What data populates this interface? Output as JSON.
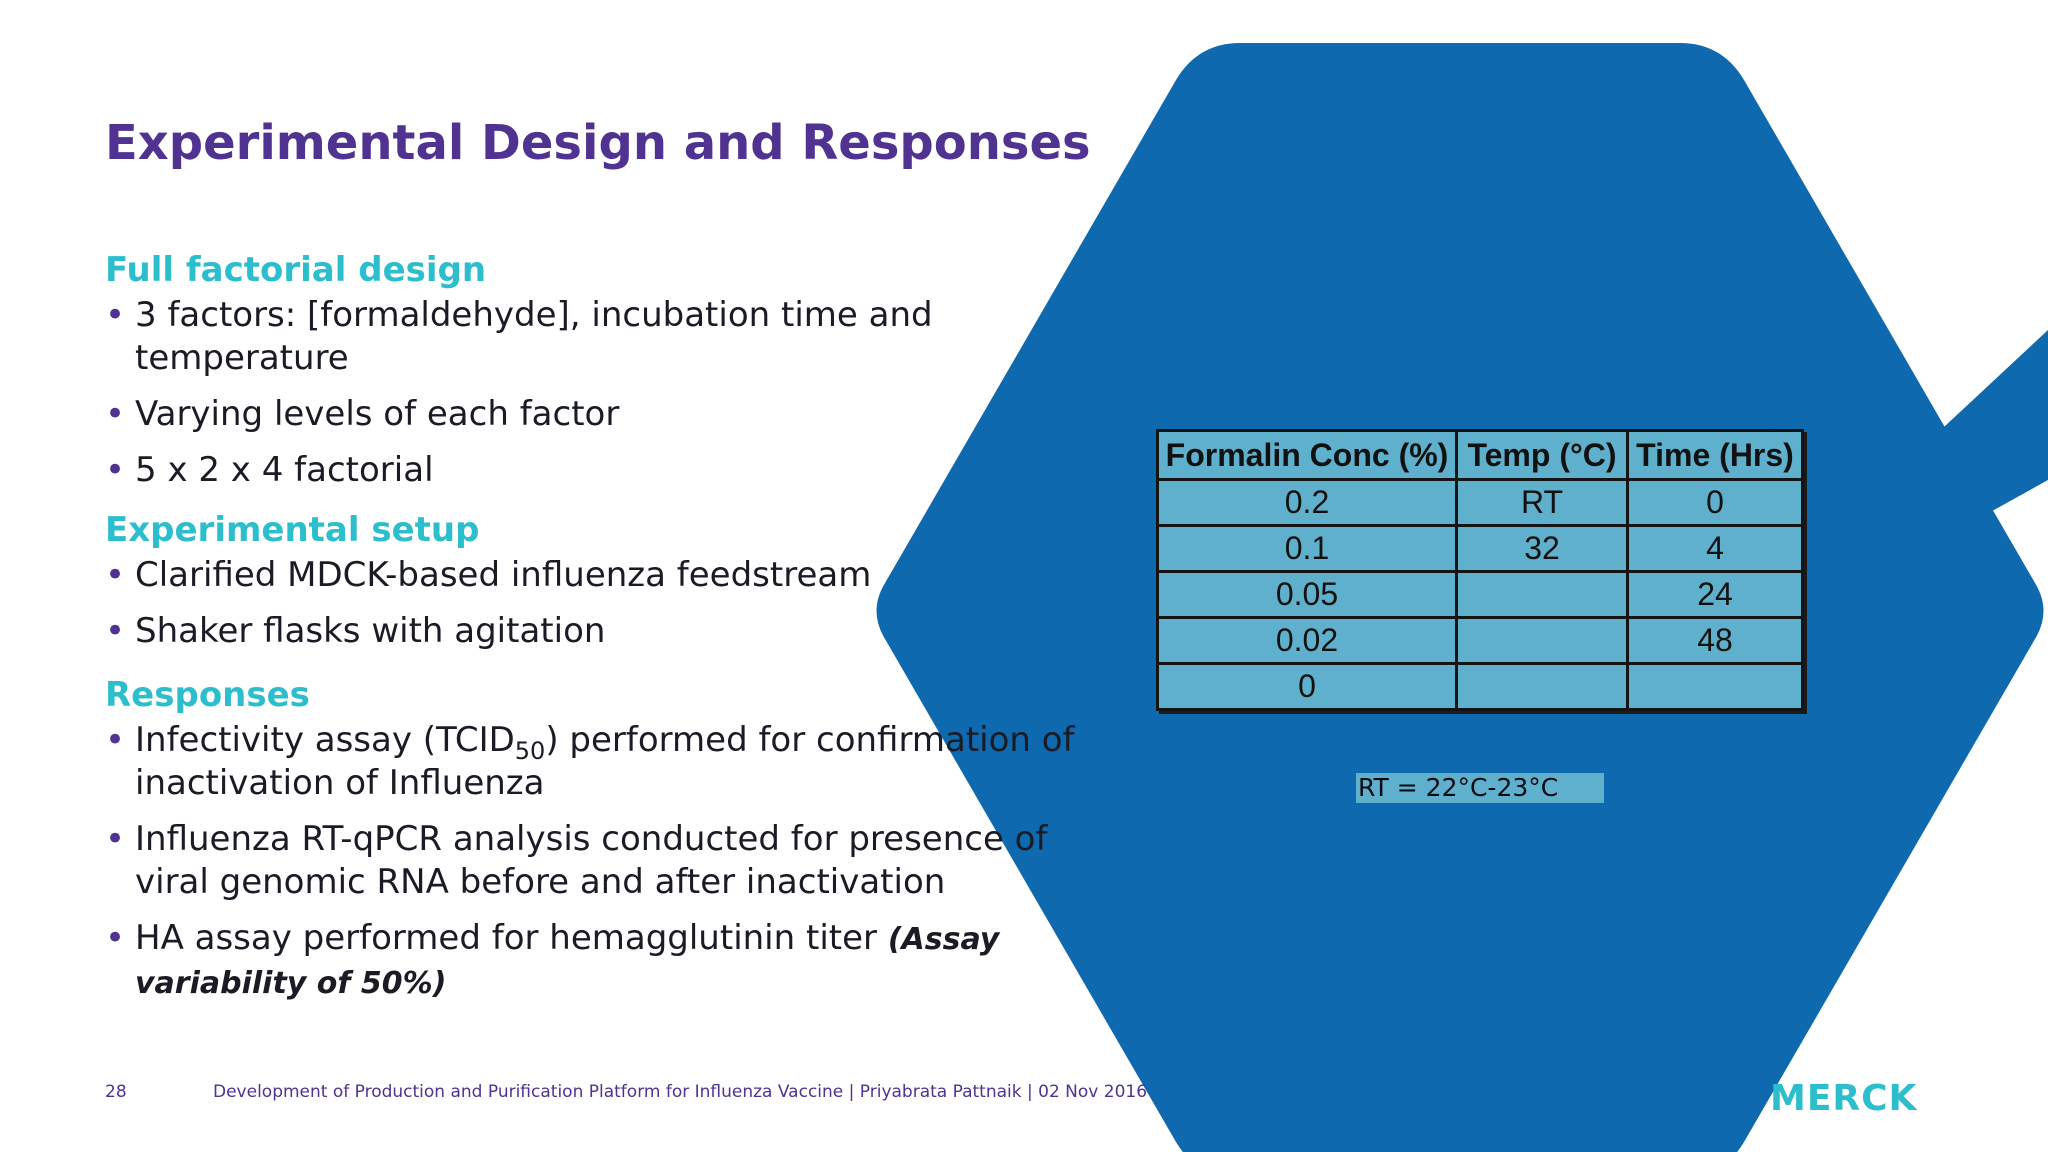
{
  "slide": {
    "title": "Experimental Design and Responses",
    "sections": [
      {
        "heading": "Full factorial design",
        "bullets": [
          "3 factors:  [formaldehyde], incubation time and temperature",
          "Varying levels of each factor",
          "5 x 2 x 4 factorial"
        ]
      },
      {
        "heading": "Experimental setup",
        "bullets": [
          "Clarified MDCK-based influenza feedstream",
          "Shaker flasks with agitation"
        ]
      },
      {
        "heading": "Responses",
        "bullets": [
          {
            "before": "Infectivity assay (TCID",
            "sub": "50",
            "after": ") performed for confirmation of inactivation of Influenza"
          },
          "Influenza RT-qPCR analysis conducted for presence of viral genomic RNA before and after inactivation",
          {
            "text": "HA assay performed for hemagglutinin titer ",
            "emphasis": "(Assay variability of 50%)"
          }
        ]
      }
    ]
  },
  "factor_table": {
    "headers": [
      "Formalin Conc (%)",
      "Temp (°C)",
      "Time (Hrs)"
    ],
    "rows": [
      [
        "0.2",
        "RT",
        "0"
      ],
      [
        "0.1",
        "32",
        "4"
      ],
      [
        "0.05",
        "",
        "24"
      ],
      [
        "0.02",
        "",
        "48"
      ],
      [
        "0",
        "",
        ""
      ]
    ],
    "note": "RT = 22°C-23°C"
  },
  "footer": {
    "page_number": "28",
    "text": "Development of Production and Purification Platform for Influenza Vaccine | Priyabrata Pattnaik | 02 Nov 2016",
    "logo": "MERCK"
  },
  "colors": {
    "title": "#503291",
    "heading": "#2dbecd",
    "hexagon": "#0f69af",
    "table_fill": "#5fb0cc",
    "logo": "#2dbecd"
  }
}
